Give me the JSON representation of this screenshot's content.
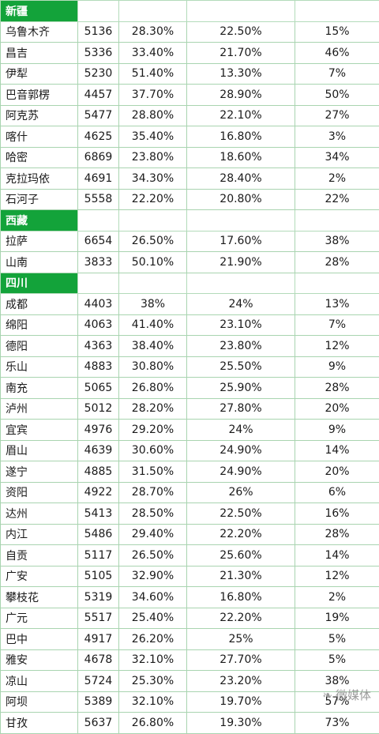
{
  "sections": [
    {
      "name": "新疆",
      "rows": [
        [
          "乌鲁木齐",
          "5136",
          "28.30%",
          "22.50%",
          "15%"
        ],
        [
          "昌吉",
          "5336",
          "33.40%",
          "21.70%",
          "46%"
        ],
        [
          "伊犁",
          "5230",
          "51.40%",
          "13.30%",
          "7%"
        ],
        [
          "巴音郭楞",
          "4457",
          "37.70%",
          "28.90%",
          "50%"
        ],
        [
          "阿克苏",
          "5477",
          "28.80%",
          "22.10%",
          "27%"
        ],
        [
          "喀什",
          "4625",
          "35.40%",
          "16.80%",
          "3%"
        ],
        [
          "哈密",
          "6869",
          "23.80%",
          "18.60%",
          "34%"
        ],
        [
          "克拉玛依",
          "4691",
          "34.30%",
          "28.40%",
          "2%"
        ],
        [
          "石河子",
          "5558",
          "22.20%",
          "20.80%",
          "22%"
        ]
      ]
    },
    {
      "name": "西藏",
      "rows": [
        [
          "拉萨",
          "6654",
          "26.50%",
          "17.60%",
          "38%"
        ],
        [
          "山南",
          "3833",
          "50.10%",
          "21.90%",
          "28%"
        ]
      ]
    },
    {
      "name": "四川",
      "rows": [
        [
          "成都",
          "4403",
          "38%",
          "24%",
          "13%"
        ],
        [
          "绵阳",
          "4063",
          "41.40%",
          "23.10%",
          "7%"
        ],
        [
          "德阳",
          "4363",
          "38.40%",
          "23.80%",
          "12%"
        ],
        [
          "乐山",
          "4883",
          "30.80%",
          "25.50%",
          "9%"
        ],
        [
          "南充",
          "5065",
          "26.80%",
          "25.90%",
          "28%"
        ],
        [
          "泸州",
          "5012",
          "28.20%",
          "27.80%",
          "20%"
        ],
        [
          "宜宾",
          "4976",
          "29.20%",
          "24%",
          "9%"
        ],
        [
          "眉山",
          "4639",
          "30.60%",
          "24.90%",
          "14%"
        ],
        [
          "遂宁",
          "4885",
          "31.50%",
          "24.90%",
          "20%"
        ],
        [
          "资阳",
          "4922",
          "28.70%",
          "26%",
          "6%"
        ],
        [
          "达州",
          "5413",
          "28.50%",
          "22.50%",
          "16%"
        ],
        [
          "内江",
          "5486",
          "29.40%",
          "22.20%",
          "28%"
        ],
        [
          "自贡",
          "5117",
          "26.50%",
          "25.60%",
          "14%"
        ],
        [
          "广安",
          "5105",
          "32.90%",
          "21.30%",
          "12%"
        ],
        [
          "攀枝花",
          "5319",
          "34.60%",
          "16.80%",
          "2%"
        ],
        [
          "广元",
          "5517",
          "25.40%",
          "22.20%",
          "19%"
        ],
        [
          "巴中",
          "4917",
          "26.20%",
          "25%",
          "5%"
        ],
        [
          "雅安",
          "4678",
          "32.10%",
          "27.70%",
          "5%"
        ],
        [
          "凉山",
          "5724",
          "25.30%",
          "23.20%",
          "38%"
        ],
        [
          "阿坝",
          "5389",
          "32.10%",
          "19.70%",
          "57%"
        ],
        [
          "甘孜",
          "5637",
          "26.80%",
          "19.30%",
          "73%"
        ]
      ]
    }
  ],
  "watermark": {
    "text": "微媒体",
    "icon": "wechat-icon"
  }
}
